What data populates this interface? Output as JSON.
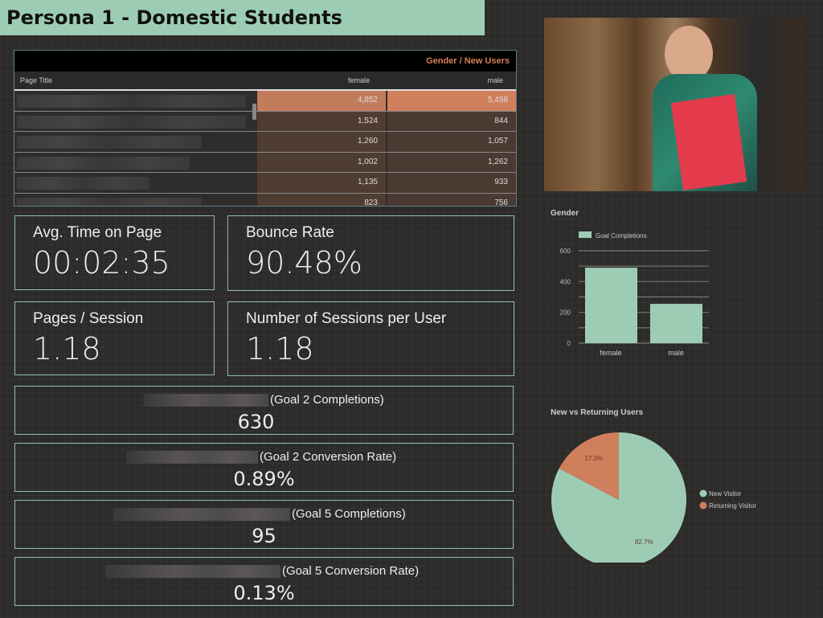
{
  "title": "Persona 1 - Domestic Students",
  "table": {
    "header": "Gender / New Users",
    "col_page": "Page Title",
    "col_female": "female",
    "col_male": "male",
    "rows": [
      {
        "female": "4,852",
        "male": "5,458"
      },
      {
        "female": "1,524",
        "male": "844"
      },
      {
        "female": "1,260",
        "male": "1,057"
      },
      {
        "female": "1,002",
        "male": "1,262"
      },
      {
        "female": "1,135",
        "male": "933"
      },
      {
        "female": "823",
        "male": "756"
      }
    ]
  },
  "metrics": [
    {
      "label": "Avg. Time on Page",
      "value": "00:02:35"
    },
    {
      "label": "Bounce Rate",
      "value": "90.48%"
    },
    {
      "label": "Pages / Session",
      "value": "1.18"
    },
    {
      "label": "Number of Sessions per User",
      "value": "1.18"
    }
  ],
  "goals": [
    {
      "label": "(Goal 2 Completions)",
      "value": "630"
    },
    {
      "label": "(Goal 2 Conversion Rate)",
      "value": "0.89%"
    },
    {
      "label": "(Goal 5 Completions)",
      "value": "95"
    },
    {
      "label": "(Goal 5 Conversion Rate)",
      "value": "0.13%"
    }
  ],
  "colors": {
    "accent": "#9dccb5",
    "orange": "#d07f5c"
  },
  "chart_data": [
    {
      "type": "bar",
      "title": "Gender",
      "legend": "Goal Completions",
      "categories": [
        "female",
        "male"
      ],
      "values": [
        490,
        255
      ],
      "ylim": [
        0,
        600
      ],
      "yticks": [
        "0",
        "200",
        "400",
        "600"
      ]
    },
    {
      "type": "pie",
      "title": "New vs Returning Users",
      "labels": [
        "New Visitor",
        "Returning Visitor"
      ],
      "values": [
        82.7,
        17.3
      ],
      "value_labels": [
        "82.7%",
        "17.3%"
      ],
      "legend": "right"
    }
  ]
}
